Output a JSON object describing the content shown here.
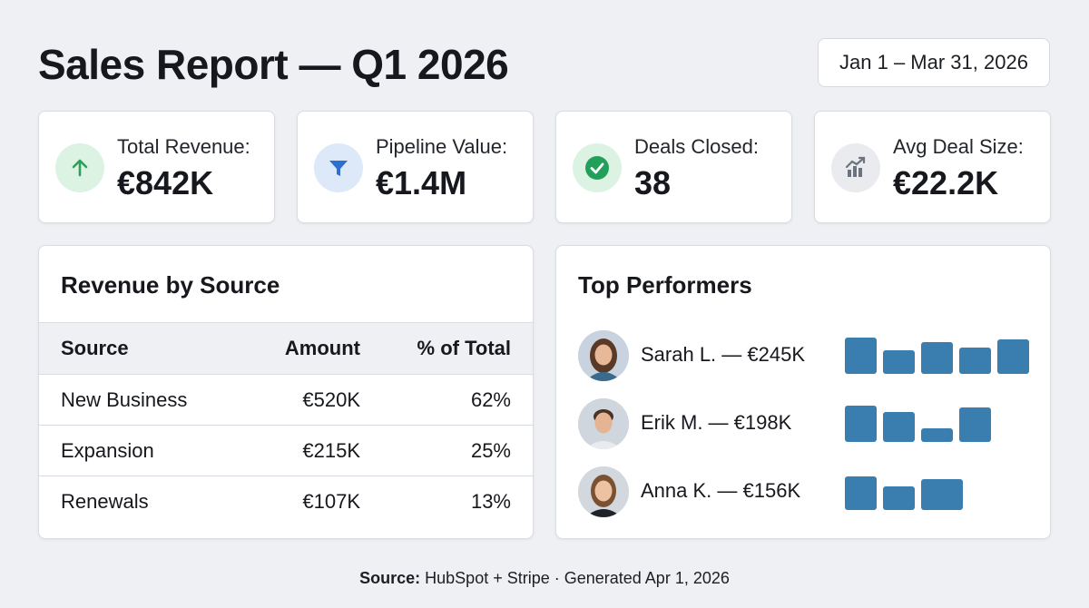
{
  "header": {
    "title": "Sales Report — Q1 2026",
    "date_range": "Jan 1 – Mar 31, 2026"
  },
  "kpis": [
    {
      "label": "Total Revenue:",
      "value": "€842K",
      "icon": "arrow-up-icon",
      "color": "#2e9e5b"
    },
    {
      "label": "Pipeline Value:",
      "value": "€1.4M",
      "icon": "funnel-icon",
      "color": "#2d6fd0"
    },
    {
      "label": "Deals Closed:",
      "value": "38",
      "icon": "check-circle-icon",
      "color": "#22a05a"
    },
    {
      "label": "Avg Deal Size:",
      "value": "€22.2K",
      "icon": "trend-chart-icon",
      "color": "#6b7280"
    }
  ],
  "revenue_by_source": {
    "title": "Revenue by Source",
    "columns": [
      "Source",
      "Amount",
      "% of Total"
    ],
    "rows": [
      [
        "New Business",
        "€520K",
        "62%"
      ],
      [
        "Expansion",
        "€215K",
        "25%"
      ],
      [
        "Renewals",
        "€107K",
        "13%"
      ]
    ]
  },
  "top_performers": {
    "title": "Top Performers",
    "bar_color": "#3a7daf",
    "people": [
      {
        "label": "Sarah L. — €245K",
        "bars": [
          1.0,
          0.65,
          0.88,
          0.72,
          0.95
        ]
      },
      {
        "label": "Erik M. — €198K",
        "bars": [
          1.0,
          0.82,
          0.38,
          0.95
        ]
      },
      {
        "label": "Anna K. — €156K",
        "bars": [
          0.92,
          0.65,
          0.85
        ]
      }
    ]
  },
  "footer": {
    "source_label": "Source:",
    "source_text": "HubSpot + Stripe · Generated Apr 1, 2026"
  }
}
